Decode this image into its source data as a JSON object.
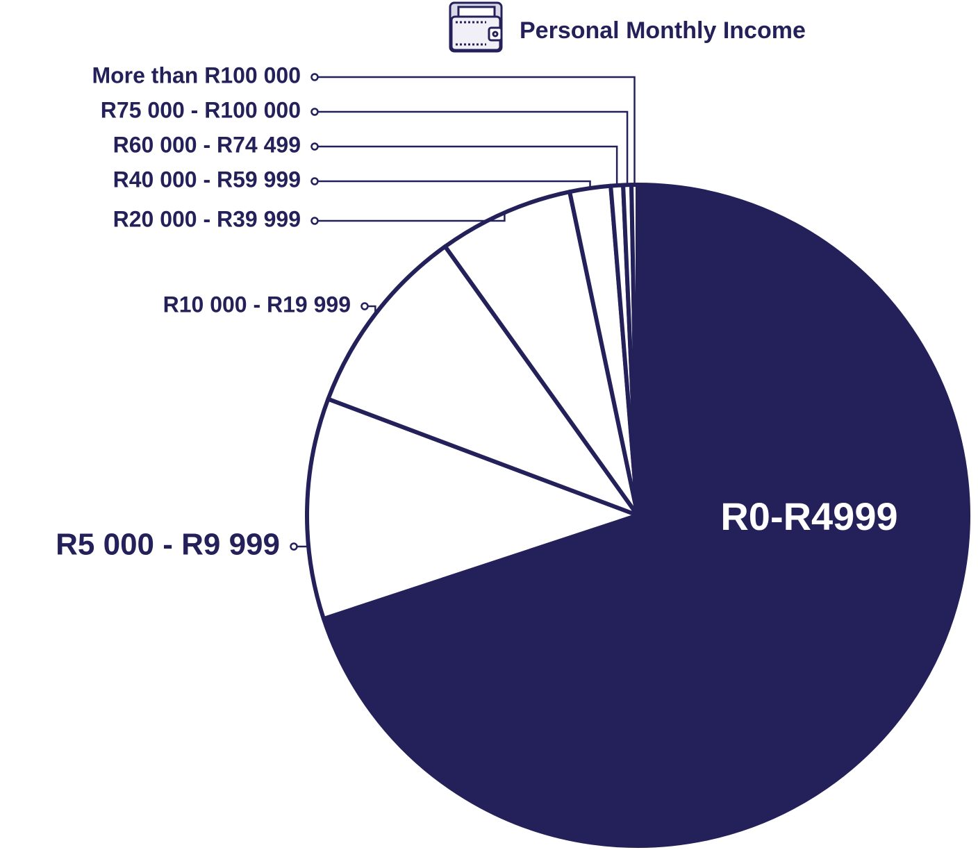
{
  "chart_data": {
    "type": "pie",
    "title": "Personal Monthly Income",
    "categories": [
      "R0-R4999",
      "R5 000 - R9 999",
      "R10 000 - R19 999",
      "R20 000 - R39 999",
      "R40 000 - R59 999",
      "R60 000 - R74 499",
      "R75 000 - R100 000",
      "More than R100 000"
    ],
    "values": [
      70,
      10.8,
      9.4,
      6.6,
      2.0,
      0.6,
      0.4,
      0.3
    ],
    "colors": [
      "#24215a",
      "#ffffff",
      "#ffffff",
      "#ffffff",
      "#ffffff",
      "#ffffff",
      "#ffffff",
      "#ffffff"
    ]
  }
}
